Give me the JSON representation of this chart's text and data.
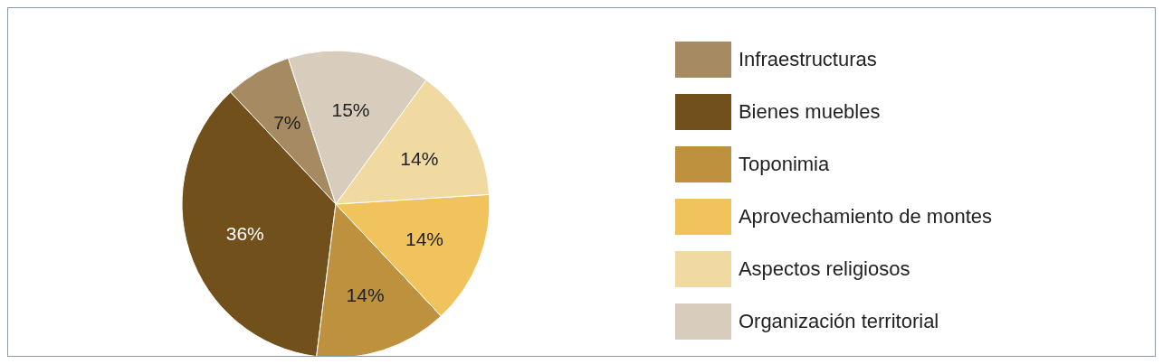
{
  "chart_data": {
    "type": "pie",
    "categories": [
      "Infraestructuras",
      "Bienes muebles",
      "Toponimia",
      "Aprovechamiento de montes",
      "Aspectos religiosos",
      "Organización territorial"
    ],
    "values": [
      7,
      36,
      14,
      14,
      14,
      15
    ],
    "value_labels": [
      "7%",
      "36%",
      "14%",
      "14%",
      "14%",
      "15%"
    ],
    "colors": [
      "#a68b62",
      "#72501b",
      "#be913f",
      "#f0c35c",
      "#f1d9a2",
      "#d8cdbc"
    ],
    "legend": "right"
  }
}
